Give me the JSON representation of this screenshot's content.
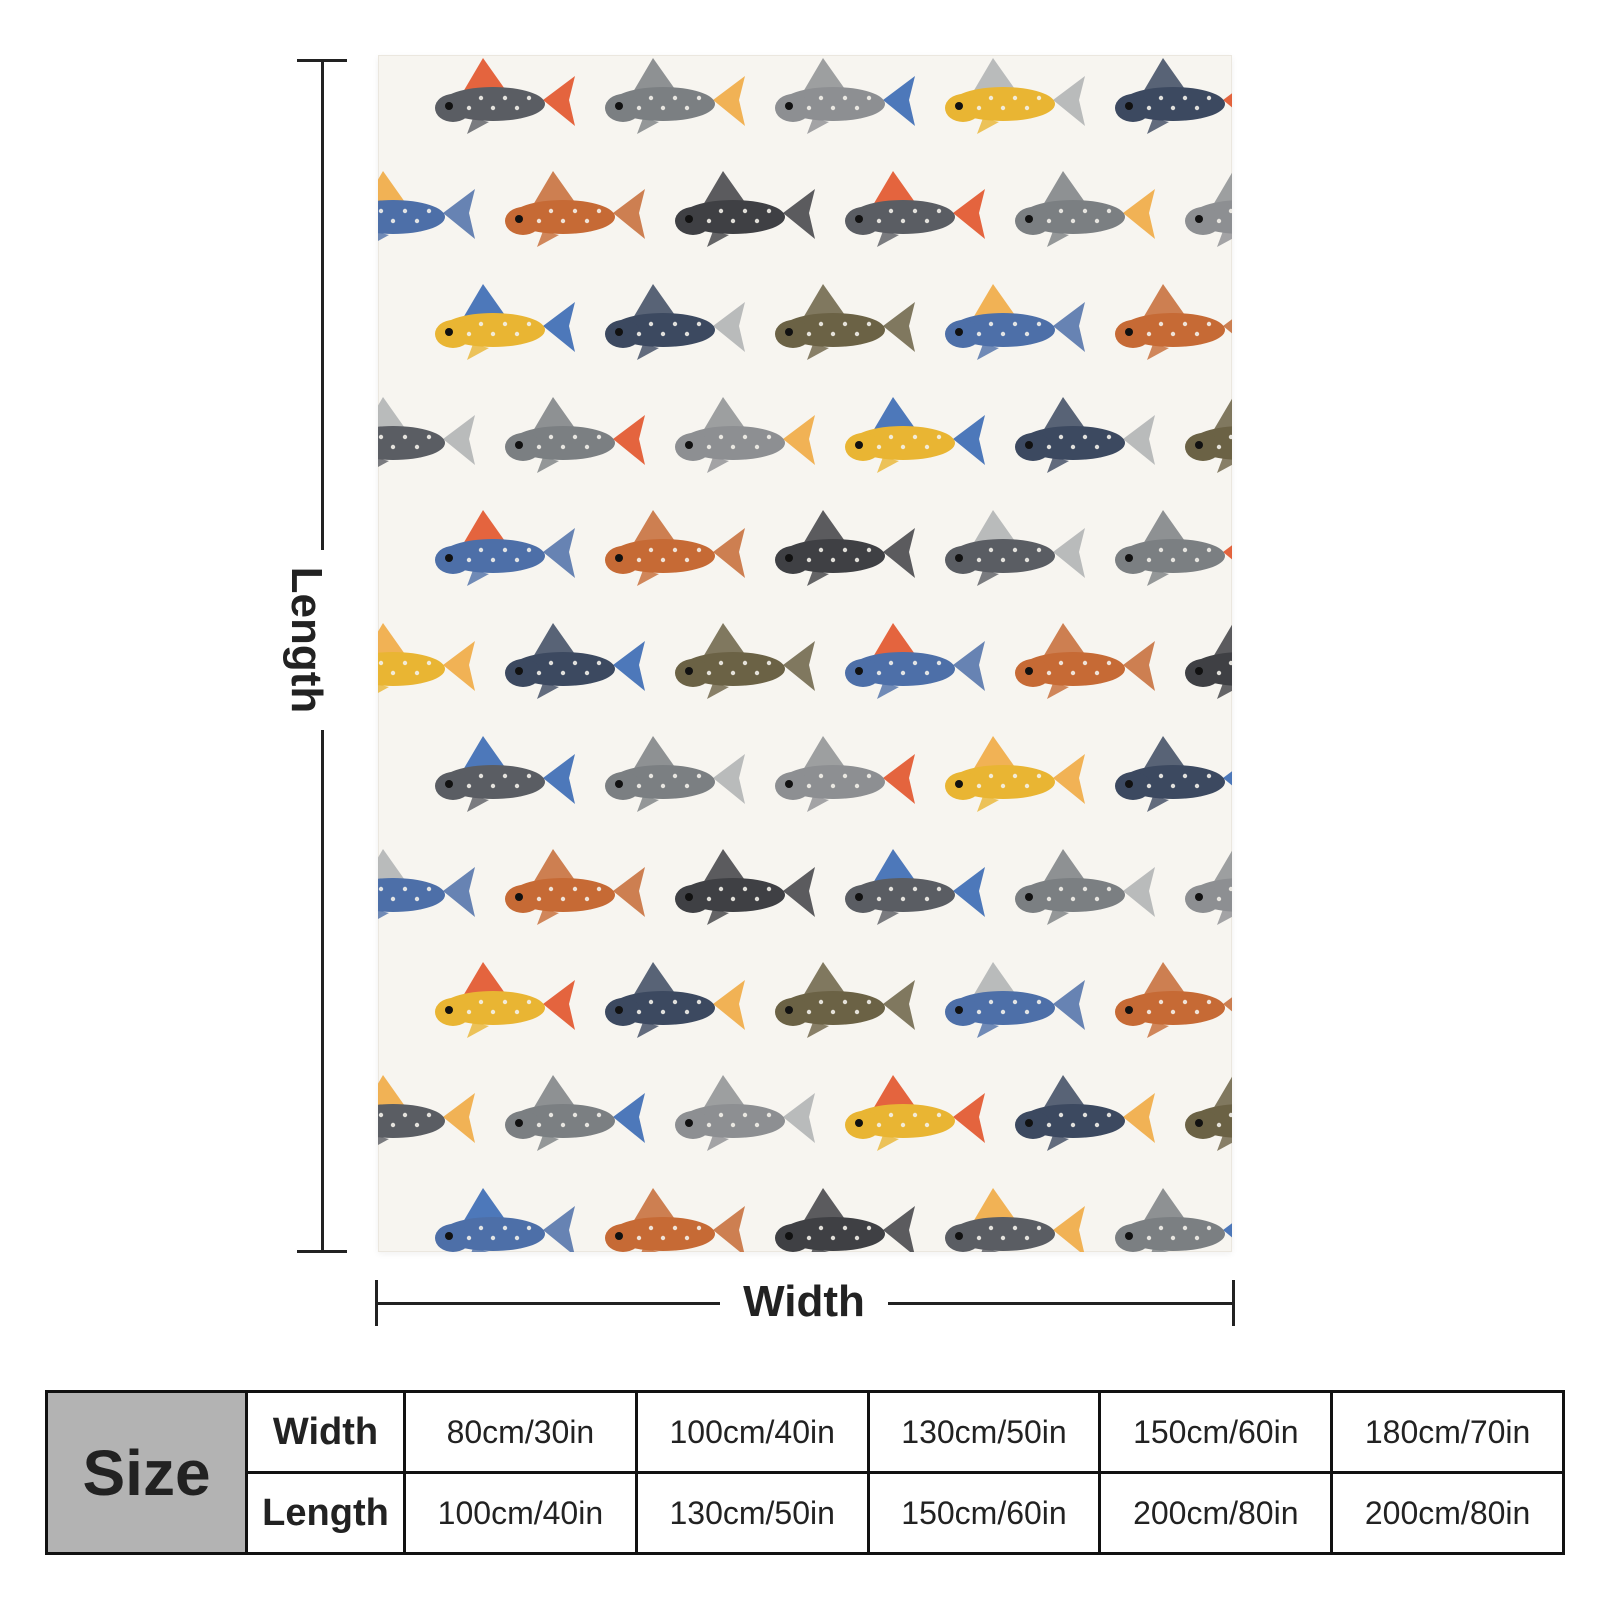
{
  "labels": {
    "length": "Length",
    "width": "Width"
  },
  "size_table": {
    "corner": "Size",
    "rows": [
      {
        "head": "Width",
        "values": [
          "80cm/30in",
          "100cm/40in",
          "130cm/50in",
          "150cm/60in",
          "180cm/70in"
        ]
      },
      {
        "head": "Length",
        "values": [
          "100cm/40in",
          "130cm/50in",
          "150cm/60in",
          "200cm/80in",
          "200cm/80in"
        ]
      }
    ]
  },
  "pattern": {
    "background": "#f7f5f0",
    "fish_colors": [
      "#5a5d63",
      "#6b6245",
      "#7b7f82",
      "#4d6fa8",
      "#8d8f92",
      "#c66a35",
      "#e9b533",
      "#3f4044",
      "#3c4960"
    ],
    "accent_colors": [
      "#e04a1f",
      "#f0a63a",
      "#2f62b0",
      "#aeb0b2"
    ]
  }
}
